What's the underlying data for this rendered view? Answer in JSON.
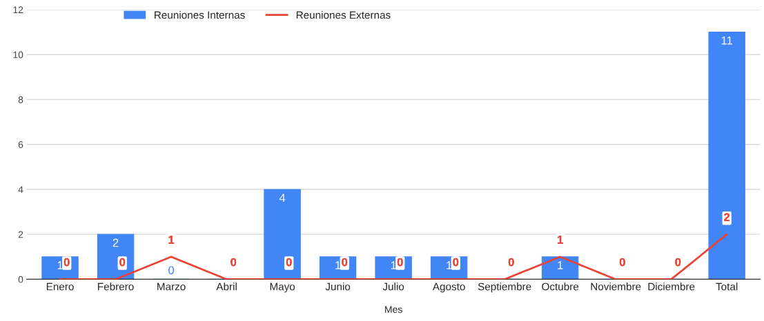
{
  "chart_data": {
    "type": "bar",
    "xlabel": "Mes",
    "categories": [
      "Enero",
      "Febrero",
      "Marzo",
      "Abril",
      "Mayo",
      "Junio",
      "Julio",
      "Agosto",
      "Septiembre",
      "Octubre",
      "Noviembre",
      "Diciembre",
      "Total"
    ],
    "series": [
      {
        "name": "Reuniones Internas",
        "color": "#4285f4",
        "values": [
          1,
          2,
          0,
          0,
          4,
          1,
          1,
          1,
          0,
          1,
          0,
          0,
          11
        ],
        "value_labels": [
          "1",
          "2",
          "0",
          null,
          "4",
          "1",
          "1",
          "1",
          null,
          "1",
          null,
          null,
          "11"
        ]
      },
      {
        "name": "Reuniones Externas",
        "type": "line",
        "color": "#ea4335",
        "values": [
          0,
          0,
          1,
          0,
          0,
          0,
          0,
          0,
          0,
          1,
          0,
          0,
          2
        ],
        "value_labels": [
          "0",
          "0",
          "1",
          "0",
          "0",
          "0",
          "0",
          "0",
          "0",
          "1",
          "0",
          "0",
          "2"
        ]
      }
    ],
    "ylim": [
      0,
      12
    ],
    "yticks": [
      0,
      2,
      4,
      6,
      8,
      10,
      12
    ],
    "grid": "y",
    "legend": "top left"
  }
}
